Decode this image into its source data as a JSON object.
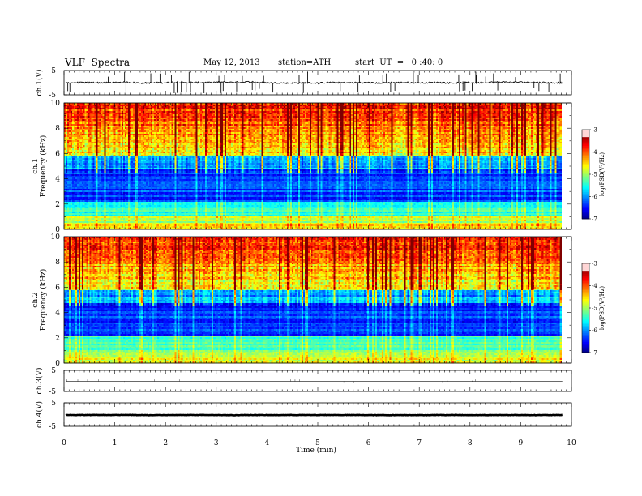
{
  "header": {
    "title": "VLF  Spectra",
    "date": "May 12, 2013",
    "station": "station=ATH",
    "start": "start  UT  =   0 :40: 0"
  },
  "chart_data": [
    {
      "type": "line",
      "name": "ch1-waveform",
      "ylabel": "ch.1(V)",
      "ylim": [
        -5,
        5
      ],
      "yticks": [
        "5",
        "-5"
      ],
      "xlim": [
        0,
        10
      ],
      "baseline": 0,
      "noise_amplitude": 0.6,
      "spike_count": 60,
      "spike_amplitude": 4.5
    },
    {
      "type": "heatmap",
      "name": "ch1-spectrogram",
      "ylabel": "ch.1\nFrequency  (kHz)",
      "yticks": [
        "0",
        "2",
        "4",
        "6",
        "8",
        "10"
      ],
      "ylim": [
        0,
        10
      ],
      "xlim": [
        0,
        10
      ],
      "data_end_min": 9.8,
      "colorbar": {
        "label": "log(PSD(V²/Hz)",
        "ticks": [
          "-3",
          "-4",
          "-5",
          "-6",
          "-7"
        ],
        "range": [
          -7,
          -3
        ]
      }
    },
    {
      "type": "heatmap",
      "name": "ch2-spectrogram",
      "ylabel": "ch.2\nFrequency  (kHz)",
      "yticks": [
        "0",
        "2",
        "4",
        "6",
        "8",
        "10"
      ],
      "ylim": [
        0,
        10
      ],
      "xlim": [
        0,
        10
      ],
      "data_end_min": 9.8,
      "colorbar": {
        "label": "log(PSD(V²/Hz)",
        "ticks": [
          "-3",
          "-4",
          "-5",
          "-6",
          "-7"
        ],
        "range": [
          -7,
          -3
        ]
      }
    },
    {
      "type": "line",
      "name": "ch3-waveform",
      "ylabel": "ch.3(V)",
      "ylim": [
        -5,
        5
      ],
      "yticks": [
        "5",
        "-5"
      ],
      "xlim": [
        0,
        10
      ],
      "baseline": -0.2,
      "noise_amplitude": 0.0,
      "spike_count": 8,
      "spike_amplitude": 0.4
    },
    {
      "type": "line",
      "name": "ch4-waveform",
      "ylabel": "ch.4(V)",
      "ylim": [
        -5,
        5
      ],
      "yticks": [
        "5",
        "-5"
      ],
      "xlim": [
        0,
        10
      ],
      "baseline": -0.2,
      "noise_amplitude": 0.15,
      "spike_count": 0,
      "spike_amplitude": 0
    }
  ],
  "xaxis": {
    "label": "Time  (min)",
    "ticks": [
      "0",
      "1",
      "2",
      "3",
      "4",
      "5",
      "6",
      "7",
      "8",
      "9",
      "10"
    ],
    "range": [
      0,
      10
    ]
  }
}
